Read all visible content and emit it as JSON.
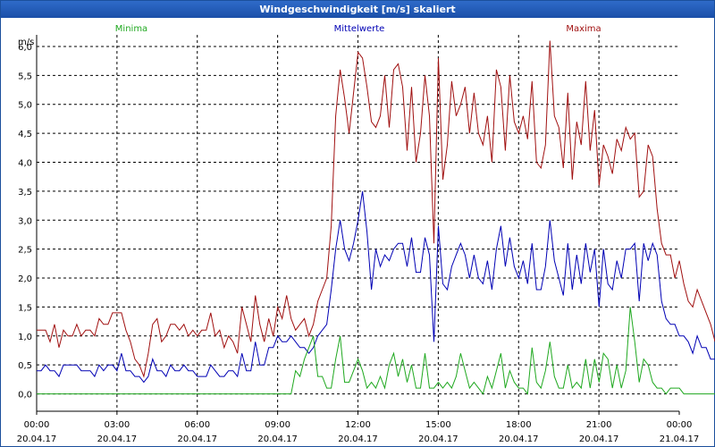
{
  "window": {
    "title": "Windgeschwindigkeit [m/s] skaliert"
  },
  "legend": {
    "min": "Minima",
    "mean": "Mittelwerte",
    "max": "Maxima"
  },
  "colors": {
    "min": "#1fa81f",
    "mean": "#0000b4",
    "max": "#a01010",
    "title_bg": "#1a4fa8"
  },
  "chart_data": {
    "type": "line",
    "ylabel": "m/s",
    "ylim": [
      -0.3,
      6.2
    ],
    "yticks": [
      "0,0",
      "0,5",
      "1,0",
      "1,5",
      "2,0",
      "2,5",
      "3,0",
      "3,5",
      "4,0",
      "4,5",
      "5,0",
      "5,5",
      "6,0"
    ],
    "xlim": [
      0,
      24
    ],
    "xticks": [
      {
        "time": "00:00",
        "date": "20.04.17"
      },
      {
        "time": "03:00",
        "date": "20.04.17"
      },
      {
        "time": "06:00",
        "date": "20.04.17"
      },
      {
        "time": "09:00",
        "date": "20.04.17"
      },
      {
        "time": "12:00",
        "date": "20.04.17"
      },
      {
        "time": "15:00",
        "date": "20.04.17"
      },
      {
        "time": "18:00",
        "date": "20.04.17"
      },
      {
        "time": "21:00",
        "date": "20.04.17"
      },
      {
        "time": "00:00",
        "date": "21.04.17"
      }
    ],
    "step_hours": 0.1667,
    "series": [
      {
        "name": "Maxima",
        "key": "max",
        "values": [
          1.1,
          1.1,
          1.1,
          0.9,
          1.2,
          0.8,
          1.1,
          1.0,
          1.0,
          1.2,
          1.0,
          1.1,
          1.1,
          1.0,
          1.3,
          1.2,
          1.2,
          1.4,
          1.4,
          1.4,
          1.1,
          0.9,
          0.6,
          0.5,
          0.3,
          0.7,
          1.2,
          1.3,
          0.9,
          1.0,
          1.2,
          1.2,
          1.1,
          1.2,
          1.0,
          1.1,
          1.0,
          1.1,
          1.1,
          1.4,
          1.0,
          1.1,
          0.8,
          1.0,
          0.9,
          0.7,
          1.5,
          1.2,
          0.9,
          1.7,
          1.2,
          0.9,
          1.3,
          1.0,
          1.5,
          1.3,
          1.7,
          1.3,
          1.1,
          1.2,
          1.3,
          1.0,
          1.2,
          1.6,
          1.8,
          2.0,
          2.9,
          4.8,
          5.6,
          5.1,
          4.5,
          5.2,
          5.9,
          5.8,
          5.3,
          4.7,
          4.6,
          4.8,
          5.5,
          4.6,
          5.6,
          5.7,
          5.3,
          4.2,
          5.3,
          4.0,
          4.5,
          5.5,
          4.8,
          2.6,
          5.8,
          3.7,
          4.3,
          5.4,
          4.8,
          5.0,
          5.3,
          4.5,
          5.2,
          4.5,
          4.3,
          4.8,
          4.0,
          5.6,
          5.3,
          4.2,
          5.5,
          4.7,
          4.5,
          4.8,
          4.4,
          5.4,
          4.0,
          3.9,
          4.3,
          6.1,
          4.8,
          4.6,
          3.9,
          5.2,
          3.7,
          4.7,
          4.3,
          5.4,
          4.2,
          4.9,
          3.6,
          4.3,
          4.1,
          3.8,
          4.4,
          4.2,
          4.6,
          4.4,
          4.5,
          3.4,
          3.5,
          4.3,
          4.1,
          3.2,
          2.6,
          2.4,
          2.4,
          2.0,
          2.3,
          1.9,
          1.6,
          1.5,
          1.8,
          1.6,
          1.4,
          1.2,
          0.9,
          1.4,
          1.1,
          0.8,
          1.0,
          1.1,
          1.2,
          1.0,
          0.9,
          0.8,
          1.1,
          1.0,
          1.3,
          1.1,
          1.0,
          0.8,
          1.1,
          1.0,
          1.2,
          1.0,
          0.9,
          1.1,
          1.6,
          1.9,
          1.4,
          0.9,
          0.9
        ]
      },
      {
        "name": "Mittelwerte",
        "key": "mean",
        "values": [
          0.4,
          0.4,
          0.5,
          0.4,
          0.4,
          0.3,
          0.5,
          0.5,
          0.5,
          0.5,
          0.4,
          0.4,
          0.4,
          0.3,
          0.5,
          0.4,
          0.5,
          0.5,
          0.4,
          0.7,
          0.4,
          0.4,
          0.3,
          0.3,
          0.2,
          0.3,
          0.6,
          0.4,
          0.4,
          0.3,
          0.5,
          0.4,
          0.4,
          0.5,
          0.4,
          0.4,
          0.3,
          0.3,
          0.3,
          0.5,
          0.4,
          0.3,
          0.3,
          0.4,
          0.4,
          0.3,
          0.7,
          0.4,
          0.4,
          0.9,
          0.5,
          0.5,
          0.8,
          0.8,
          1.0,
          0.9,
          0.9,
          1.0,
          0.9,
          0.8,
          0.8,
          0.7,
          0.8,
          1.0,
          1.1,
          1.2,
          1.8,
          2.5,
          3.0,
          2.5,
          2.3,
          2.6,
          3.0,
          3.5,
          2.8,
          1.8,
          2.5,
          2.2,
          2.4,
          2.3,
          2.5,
          2.6,
          2.6,
          2.2,
          2.7,
          2.1,
          2.1,
          2.7,
          2.4,
          0.9,
          2.9,
          1.9,
          1.8,
          2.2,
          2.4,
          2.6,
          2.4,
          2.0,
          2.4,
          2.0,
          1.9,
          2.3,
          1.8,
          2.5,
          2.9,
          2.2,
          2.7,
          2.2,
          2.0,
          2.3,
          1.9,
          2.6,
          1.8,
          1.8,
          2.2,
          3.0,
          2.3,
          2.0,
          1.7,
          2.6,
          1.8,
          2.4,
          1.9,
          2.6,
          2.1,
          2.5,
          1.5,
          2.5,
          1.9,
          1.8,
          2.3,
          2.0,
          2.5,
          2.5,
          2.6,
          1.6,
          2.6,
          2.3,
          2.6,
          2.4,
          1.6,
          1.3,
          1.2,
          1.2,
          1.0,
          1.0,
          0.9,
          0.7,
          1.0,
          0.8,
          0.8,
          0.6,
          0.6,
          0.6,
          0.5,
          0.5,
          0.5,
          0.6,
          0.5,
          0.4,
          0.5,
          0.4,
          0.5,
          0.4,
          0.6,
          0.5,
          0.5,
          0.4,
          0.6,
          0.5,
          0.6,
          0.5,
          0.6,
          0.5,
          0.5,
          0.6,
          0.6,
          0.5,
          0.4
        ]
      },
      {
        "name": "Minima",
        "key": "min",
        "values": [
          0,
          0,
          0,
          0,
          0,
          0,
          0,
          0,
          0,
          0,
          0,
          0,
          0,
          0,
          0,
          0,
          0,
          0,
          0,
          0,
          0,
          0,
          0,
          0,
          0,
          0,
          0,
          0,
          0,
          0,
          0,
          0,
          0,
          0,
          0,
          0,
          0,
          0,
          0,
          0,
          0,
          0,
          0,
          0,
          0,
          0,
          0,
          0,
          0,
          0,
          0,
          0,
          0,
          0,
          0,
          0,
          0,
          0,
          0.4,
          0.3,
          0.6,
          0.8,
          1.0,
          0.3,
          0.3,
          0.1,
          0.1,
          0.6,
          1.0,
          0.2,
          0.2,
          0.4,
          0.6,
          0.4,
          0.1,
          0.2,
          0.1,
          0.3,
          0.1,
          0.5,
          0.7,
          0.3,
          0.6,
          0.2,
          0.5,
          0.1,
          0.1,
          0.7,
          0.1,
          0.1,
          0.2,
          0.1,
          0.2,
          0.1,
          0.3,
          0.7,
          0.4,
          0.1,
          0.2,
          0.1,
          0.0,
          0.3,
          0.1,
          0.4,
          0.7,
          0.1,
          0.4,
          0.2,
          0.1,
          0.1,
          0.0,
          0.8,
          0.2,
          0.1,
          0.4,
          0.9,
          0.3,
          0.1,
          0.1,
          0.5,
          0.1,
          0.2,
          0.1,
          0.6,
          0.1,
          0.6,
          0.2,
          0.7,
          0.6,
          0.1,
          0.5,
          0.1,
          0.4,
          1.5,
          0.9,
          0.2,
          0.6,
          0.5,
          0.2,
          0.1,
          0.1,
          0.0,
          0.1,
          0.1,
          0.1,
          0,
          0,
          0,
          0,
          0,
          0,
          0,
          0,
          0,
          0,
          0,
          0,
          0,
          0,
          0,
          0,
          0,
          0.3,
          0,
          0,
          0,
          0,
          0,
          0,
          0,
          0,
          0,
          0,
          0,
          0,
          0
        ]
      }
    ]
  }
}
